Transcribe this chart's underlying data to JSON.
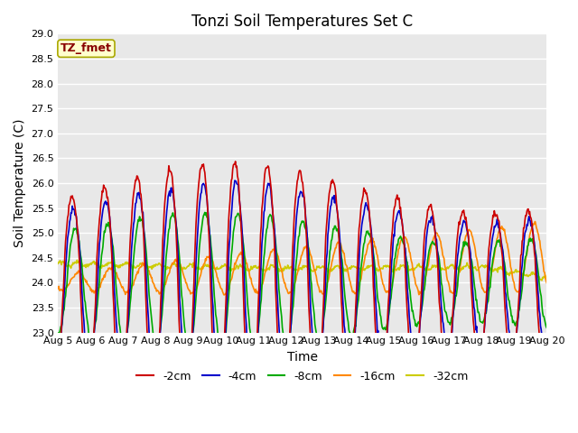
{
  "title": "Tonzi Soil Temperatures Set C",
  "xlabel": "Time",
  "ylabel": "Soil Temperature (C)",
  "annotation": "TZ_fmet",
  "ylim": [
    23.0,
    29.0
  ],
  "yticks": [
    23.0,
    23.5,
    24.0,
    24.5,
    25.0,
    25.5,
    26.0,
    26.5,
    27.0,
    27.5,
    28.0,
    28.5,
    29.0
  ],
  "xtick_labels": [
    "Aug 5",
    "Aug 6",
    "Aug 7",
    "Aug 8",
    "Aug 9",
    "Aug 10",
    "Aug 11",
    "Aug 12",
    "Aug 13",
    "Aug 14",
    "Aug 15",
    "Aug 16",
    "Aug 17",
    "Aug 18",
    "Aug 19",
    "Aug 20"
  ],
  "series": {
    "-2cm": {
      "color": "#cc0000",
      "linewidth": 1.2
    },
    "-4cm": {
      "color": "#0000cc",
      "linewidth": 1.2
    },
    "-8cm": {
      "color": "#00aa00",
      "linewidth": 1.2
    },
    "-16cm": {
      "color": "#ff8800",
      "linewidth": 1.2
    },
    "-32cm": {
      "color": "#cccc00",
      "linewidth": 1.2
    }
  },
  "bg_color": "#e8e8e8",
  "plot_bg_color": "#e8e8e8",
  "annotation_box_color": "#ffffcc",
  "annotation_text_color": "#880000"
}
